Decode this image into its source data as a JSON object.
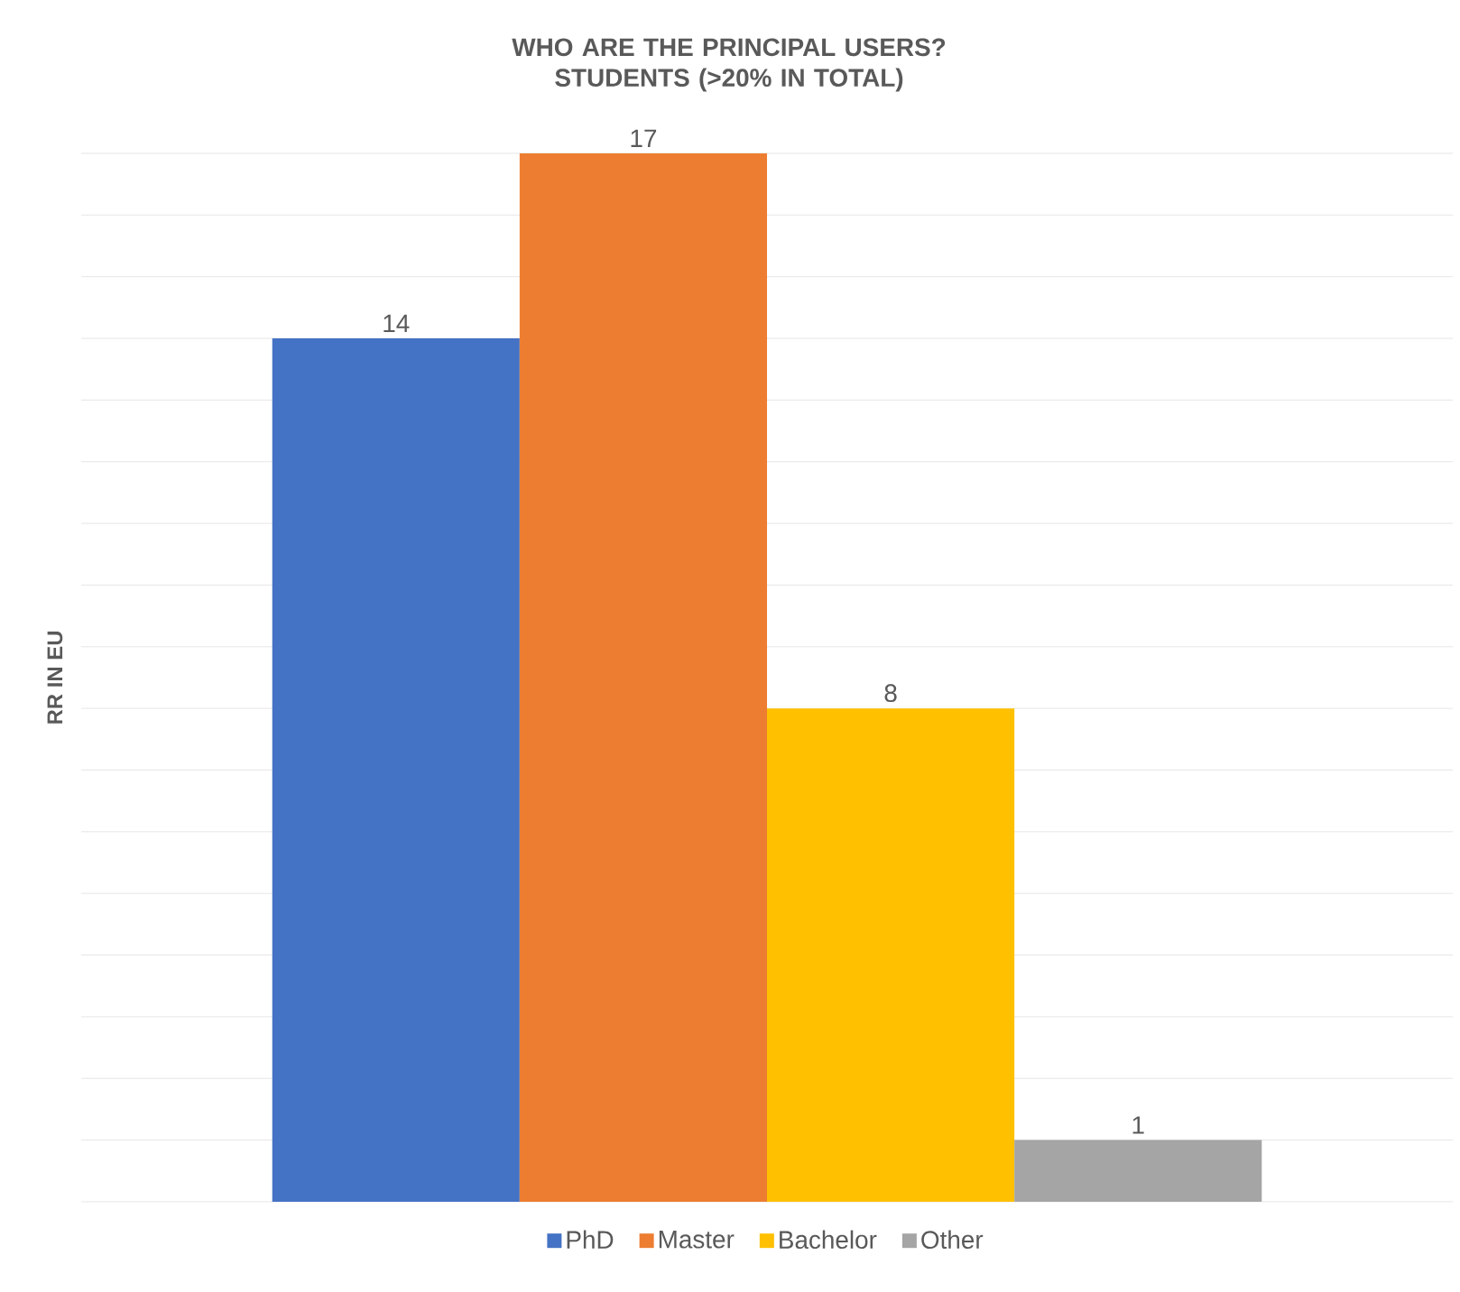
{
  "chart_data": {
    "type": "bar",
    "title": "WHO ARE THE PRINCIPAL USERS? STUDENTS (>20% IN TOTAL)",
    "ylabel": "RR IN EU",
    "categories": [
      null
    ],
    "series": [
      {
        "name": "PhD",
        "color": "#4472c4",
        "values": [
          14
        ]
      },
      {
        "name": "Master",
        "color": "#ed7d31",
        "values": [
          17
        ]
      },
      {
        "name": "Bachelor",
        "color": "#ffc000",
        "values": [
          8
        ]
      },
      {
        "name": "Other",
        "color": "#a5a5a5",
        "values": [
          1
        ]
      }
    ],
    "ylim": [
      0,
      17
    ],
    "yticks": [
      {
        "value": 0,
        "label": null
      },
      {
        "value": 1,
        "label": null
      },
      {
        "value": 2,
        "label": null
      },
      {
        "value": 3,
        "label": null
      },
      {
        "value": 4,
        "label": null
      },
      {
        "value": 5,
        "label": null
      },
      {
        "value": 6,
        "label": null
      },
      {
        "value": 7,
        "label": null
      },
      {
        "value": 8,
        "label": null
      },
      {
        "value": 9,
        "label": null
      },
      {
        "value": 10,
        "label": null
      },
      {
        "value": 11,
        "label": null
      },
      {
        "value": 12,
        "label": null
      },
      {
        "value": 13,
        "label": null
      },
      {
        "value": 14,
        "label": null
      },
      {
        "value": 15,
        "label": null
      },
      {
        "value": 16,
        "label": null
      },
      {
        "value": 17,
        "label": null
      }
    ],
    "grid": "y",
    "data_labels": true,
    "legend": "bottom"
  }
}
